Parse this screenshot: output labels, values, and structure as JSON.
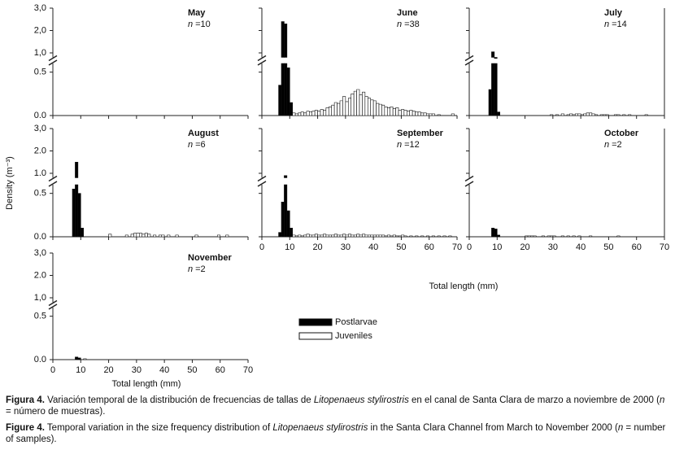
{
  "chart_data": [
    {
      "type": "bar",
      "title": "May",
      "n_text": "=10",
      "xlim": [
        0,
        70
      ],
      "ylim_lower": [
        0,
        0.6
      ],
      "ylim_upper": [
        0.8,
        3.0
      ],
      "yticks": [
        {
          "value": 3,
          "label": "3,0"
        },
        {
          "value": 2,
          "label": "2,0"
        },
        {
          "value": 1,
          "label": "1,0"
        },
        0.5,
        {
          "value": 0,
          "label": "0.0"
        }
      ],
      "series": []
    },
    {
      "type": "bar",
      "title": "June",
      "n_text": "=38",
      "xlim": [
        0,
        70
      ],
      "ylim_lower": [
        0,
        0.6
      ],
      "ylim_upper": [
        0.8,
        3.0
      ],
      "series": [
        {
          "name": "Postlarvae",
          "color": "#000000",
          "x": [
            6.5,
            7.5,
            8.5,
            9.5,
            10.5
          ],
          "values": [
            0.35,
            2.4,
            2.3,
            0.55,
            0.15
          ]
        },
        {
          "name": "Juveniles",
          "color": "#ffffff",
          "x": [
            11.5,
            12.5,
            13.5,
            14.5,
            15.5,
            16.5,
            17.5,
            18.5,
            19.5,
            20.5,
            21.5,
            22.5,
            23.5,
            24.5,
            25.5,
            26.5,
            27.5,
            28.5,
            29.5,
            30.5,
            31.5,
            32.5,
            33.5,
            34.5,
            35.5,
            36.5,
            37.5,
            38.5,
            39.5,
            40.5,
            41.5,
            42.5,
            43.5,
            44.5,
            45.5,
            46.5,
            47.5,
            48.5,
            49.5,
            50.5,
            51.5,
            52.5,
            53.5,
            54.5,
            55.5,
            56.5,
            57.5,
            58.5,
            59.5,
            60.5,
            61.5,
            63.5,
            68.5
          ],
          "values": [
            0.03,
            0.02,
            0.03,
            0.04,
            0.03,
            0.05,
            0.04,
            0.05,
            0.06,
            0.05,
            0.07,
            0.06,
            0.09,
            0.1,
            0.12,
            0.15,
            0.14,
            0.17,
            0.22,
            0.16,
            0.2,
            0.25,
            0.28,
            0.3,
            0.24,
            0.27,
            0.22,
            0.2,
            0.18,
            0.17,
            0.14,
            0.13,
            0.12,
            0.1,
            0.09,
            0.1,
            0.08,
            0.09,
            0.06,
            0.07,
            0.06,
            0.05,
            0.06,
            0.05,
            0.04,
            0.04,
            0.03,
            0.03,
            0.02,
            0.02,
            0.02,
            0.01,
            0.02
          ]
        }
      ]
    },
    {
      "type": "bar",
      "title": "July",
      "n_text": "=14",
      "xlim": [
        0,
        70
      ],
      "ylim_lower": [
        0,
        0.6
      ],
      "ylim_upper": [
        0.8,
        3.0
      ],
      "series": [
        {
          "name": "Postlarvae",
          "color": "#000000",
          "x": [
            7.5,
            8.5,
            9.5,
            10.5
          ],
          "values": [
            0.3,
            1.05,
            0.75,
            0.04
          ]
        },
        {
          "name": "Juveniles",
          "color": "#ffffff",
          "x": [
            29.5,
            31.5,
            33.5,
            35.5,
            36.5,
            37.5,
            38.5,
            39.5,
            40.5,
            41.5,
            42.5,
            43.5,
            44.5,
            45.5,
            47.5,
            48.5,
            49.5,
            52.5,
            53.5,
            55.5,
            57.5,
            63.5
          ],
          "values": [
            0.01,
            0.01,
            0.02,
            0.01,
            0.02,
            0.01,
            0.02,
            0.02,
            0.01,
            0.02,
            0.03,
            0.03,
            0.02,
            0.01,
            0.01,
            0.01,
            0.01,
            0.01,
            0.01,
            0.01,
            0.01,
            0.01
          ]
        }
      ]
    },
    {
      "type": "bar",
      "title": "August",
      "n_text": "=6",
      "ylabel": "Density (m⁻³)",
      "xlim": [
        0,
        70
      ],
      "ylim_lower": [
        0,
        0.6
      ],
      "ylim_upper": [
        0.8,
        3.0
      ],
      "yticks": [
        {
          "value": 3,
          "label": "3,0"
        },
        {
          "value": 2,
          "label": "2.0"
        },
        {
          "value": 1,
          "label": "1.0"
        },
        0.5,
        {
          "value": 0,
          "label": "0.0"
        }
      ],
      "series": [
        {
          "name": "Postlarvae",
          "color": "#000000",
          "x": [
            7.5,
            8.5,
            9.5,
            10.5
          ],
          "values": [
            0.55,
            1.5,
            0.5,
            0.1
          ]
        },
        {
          "name": "Juveniles",
          "color": "#ffffff",
          "x": [
            20.5,
            26.5,
            28.5,
            29.5,
            30.5,
            31.5,
            32.5,
            33.5,
            34.5,
            36.5,
            38.5,
            39.5,
            41.5,
            44.5,
            51.5,
            59.5,
            62.5
          ],
          "values": [
            0.03,
            0.02,
            0.03,
            0.04,
            0.04,
            0.04,
            0.03,
            0.04,
            0.03,
            0.02,
            0.02,
            0.02,
            0.02,
            0.02,
            0.02,
            0.02,
            0.02
          ]
        }
      ]
    },
    {
      "type": "bar",
      "title": "September",
      "n_text": "=12",
      "xlabel": "Total length (mm)",
      "xlim": [
        0,
        70
      ],
      "ylim_lower": [
        0,
        0.6
      ],
      "ylim_upper": [
        0.8,
        3.0
      ],
      "xticks": [
        0,
        10,
        20,
        30,
        40,
        50,
        60,
        70
      ],
      "series": [
        {
          "name": "Postlarvae",
          "color": "#000000",
          "x": [
            6.5,
            7.5,
            8.5,
            9.5,
            10.5
          ],
          "values": [
            0.05,
            0.4,
            0.9,
            0.3,
            0.1
          ]
        },
        {
          "name": "Juveniles",
          "color": "#ffffff",
          "x": [
            11.5,
            12.5,
            13.5,
            14.5,
            15.5,
            16.5,
            17.5,
            18.5,
            19.5,
            20.5,
            21.5,
            22.5,
            23.5,
            24.5,
            25.5,
            26.5,
            27.5,
            28.5,
            29.5,
            30.5,
            31.5,
            32.5,
            33.5,
            34.5,
            35.5,
            36.5,
            37.5,
            38.5,
            39.5,
            40.5,
            41.5,
            42.5,
            43.5,
            44.5,
            45.5,
            46.5,
            47.5,
            48.5,
            49.5,
            50.5,
            51.5,
            53.5,
            55.5,
            57.5,
            59.5,
            61.5,
            63.5,
            65.5,
            67.5
          ],
          "values": [
            0.02,
            0.01,
            0.02,
            0.01,
            0.02,
            0.03,
            0.02,
            0.02,
            0.03,
            0.02,
            0.02,
            0.03,
            0.02,
            0.02,
            0.02,
            0.03,
            0.02,
            0.02,
            0.03,
            0.02,
            0.03,
            0.02,
            0.02,
            0.03,
            0.02,
            0.03,
            0.02,
            0.02,
            0.02,
            0.02,
            0.02,
            0.02,
            0.02,
            0.01,
            0.02,
            0.01,
            0.02,
            0.01,
            0.01,
            0.02,
            0.01,
            0.01,
            0.01,
            0.01,
            0.01,
            0.01,
            0.01,
            0.01,
            0.01
          ]
        }
      ]
    },
    {
      "type": "bar",
      "title": "October",
      "n_text": "=2",
      "xlim": [
        0,
        70
      ],
      "ylim_lower": [
        0,
        0.6
      ],
      "ylim_upper": [
        0.8,
        3.0
      ],
      "xticks": [
        0,
        10,
        20,
        30,
        40,
        50,
        60,
        70
      ],
      "series": [
        {
          "name": "Postlarvae",
          "color": "#000000",
          "x": [
            8.5,
            9.5,
            10.5
          ],
          "values": [
            0.1,
            0.09,
            0.02
          ]
        },
        {
          "name": "Juveniles",
          "color": "#ffffff",
          "x": [
            20.5,
            21.5,
            22.5,
            23.5,
            26.5,
            28.5,
            29.5,
            30.5,
            33.5,
            35.5,
            37.5,
            39.5,
            43.5,
            53.5
          ],
          "values": [
            0.01,
            0.01,
            0.01,
            0.01,
            0.01,
            0.01,
            0.01,
            0.01,
            0.01,
            0.01,
            0.01,
            0.01,
            0.01,
            0.01
          ]
        }
      ]
    },
    {
      "type": "bar",
      "title": "November",
      "n_text": "=2",
      "xlabel": "Total length (mm)",
      "xlim": [
        0,
        70
      ],
      "ylim_lower": [
        0,
        0.6
      ],
      "ylim_upper": [
        0.8,
        3.0
      ],
      "xticks": [
        0,
        10,
        20,
        30,
        40,
        50,
        60,
        70
      ],
      "yticks": [
        {
          "value": 3,
          "label": "3,0"
        },
        {
          "value": 2,
          "label": "2.0"
        },
        {
          "value": 1,
          "label": "1,0"
        },
        0.5,
        {
          "value": 0,
          "label": "0.0"
        }
      ],
      "series": [
        {
          "name": "Postlarvae",
          "color": "#000000",
          "x": [
            8.5,
            9.5
          ],
          "values": [
            0.03,
            0.02
          ]
        },
        {
          "name": "Juveniles",
          "color": "#ffffff",
          "x": [
            11.5
          ],
          "values": [
            0.01
          ]
        }
      ]
    }
  ],
  "n_symbol": "n",
  "caption_es": [
    {
      "text": "Figura 4.",
      "style": "bold"
    },
    {
      "text": " Variación temporal de la distribución de frecuencias de tallas de ",
      "style": "normal"
    },
    {
      "text": "Litopenaeus stylirostris",
      "style": "italic"
    },
    {
      "text": " en el canal de Santa Clara de marzo a noviembre de 2000 (",
      "style": "normal"
    },
    {
      "text": "n",
      "style": "italic"
    },
    {
      "text": " = número de muestras).",
      "style": "normal"
    }
  ],
  "caption_en": [
    {
      "text": "Figure 4.",
      "style": "bold"
    },
    {
      "text": " Temporal variation in the size frequency distribution of ",
      "style": "normal"
    },
    {
      "text": "Litopenaeus stylirostris",
      "style": "italic"
    },
    {
      "text": " in the Santa Clara Channel from March to November 2000 (",
      "style": "normal"
    },
    {
      "text": "n",
      "style": "italic"
    },
    {
      "text": " = number of samples).",
      "style": "normal"
    }
  ]
}
